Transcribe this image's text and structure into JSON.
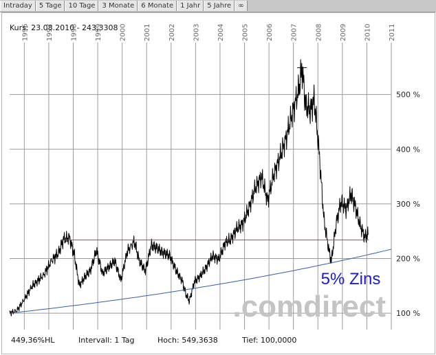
{
  "tabs": [
    "Intraday",
    "5 Tage",
    "10 Tage",
    "3 Monate",
    "6 Monate",
    "1 Jahr",
    "5 Jahre",
    "∞"
  ],
  "kurs_label": "Kurs: 23.08.2010 - 243,3308",
  "footer": {
    "perf": "449,36%HL",
    "interval": "Intervall: 1 Tag",
    "high": "Hoch: 549,3638",
    "low": "Tief: 100,0000"
  },
  "watermark": ".comdirect",
  "colors": {
    "line": "#000000",
    "resistance": "#d23232",
    "growth": "#2f5fb4",
    "annotation": "#1a1ad2",
    "grid": "#9a9a9a"
  },
  "chart_data": {
    "type": "line",
    "title": "",
    "xlabel": "",
    "ylabel": "",
    "x_ticks": [
      "1996",
      "1997",
      "1998",
      "1999",
      "2000",
      "2001",
      "2002",
      "2003",
      "2004",
      "2005",
      "2006",
      "2007",
      "2008",
      "2009",
      "2010",
      "2011"
    ],
    "y_ticks": [
      "100 %",
      "200 %",
      "300 %",
      "400 %",
      "500 %"
    ],
    "xlim": [
      1995.9,
      2011.5
    ],
    "ylim": [
      70,
      595
    ],
    "y_tick_values": [
      100,
      200,
      300,
      400,
      500
    ],
    "annotation": "5% Zins",
    "series": [
      {
        "values": [
          [
            1995.9,
            100
          ],
          [
            1996.2,
            105
          ],
          [
            1996.5,
            125
          ],
          [
            1996.8,
            148
          ],
          [
            1997.0,
            157
          ],
          [
            1997.3,
            170
          ],
          [
            1997.6,
            195
          ],
          [
            1997.9,
            210
          ],
          [
            1998.1,
            235
          ],
          [
            1998.35,
            238
          ],
          [
            1998.55,
            205
          ],
          [
            1998.75,
            150
          ],
          [
            1998.95,
            165
          ],
          [
            1999.2,
            178
          ],
          [
            1999.45,
            215
          ],
          [
            1999.7,
            172
          ],
          [
            1999.95,
            185
          ],
          [
            2000.2,
            195
          ],
          [
            2000.45,
            160
          ],
          [
            2000.7,
            212
          ],
          [
            2001.0,
            232
          ],
          [
            2001.2,
            195
          ],
          [
            2001.45,
            178
          ],
          [
            2001.7,
            225
          ],
          [
            2001.95,
            218
          ],
          [
            2002.2,
            210
          ],
          [
            2002.45,
            205
          ],
          [
            2002.7,
            178
          ],
          [
            2002.95,
            160
          ],
          [
            2003.1,
            135
          ],
          [
            2003.25,
            122
          ],
          [
            2003.45,
            158
          ],
          [
            2003.7,
            168
          ],
          [
            2003.95,
            185
          ],
          [
            2004.2,
            205
          ],
          [
            2004.45,
            198
          ],
          [
            2004.7,
            228
          ],
          [
            2004.95,
            236
          ],
          [
            2005.2,
            255
          ],
          [
            2005.45,
            265
          ],
          [
            2005.7,
            295
          ],
          [
            2005.95,
            330
          ],
          [
            2006.2,
            350
          ],
          [
            2006.45,
            305
          ],
          [
            2006.7,
            355
          ],
          [
            2006.95,
            385
          ],
          [
            2007.2,
            420
          ],
          [
            2007.45,
            465
          ],
          [
            2007.7,
            505
          ],
          [
            2007.85,
            549
          ],
          [
            2008.0,
            480
          ],
          [
            2008.2,
            470
          ],
          [
            2008.35,
            492
          ],
          [
            2008.55,
            395
          ],
          [
            2008.75,
            270
          ],
          [
            2008.95,
            215
          ],
          [
            2009.05,
            195
          ],
          [
            2009.25,
            265
          ],
          [
            2009.45,
            305
          ],
          [
            2009.65,
            290
          ],
          [
            2009.85,
            318
          ],
          [
            2010.0,
            300
          ],
          [
            2010.2,
            265
          ],
          [
            2010.4,
            240
          ],
          [
            2010.55,
            243
          ]
        ]
      },
      {
        "values": [
          [
            1998.0,
            234
          ],
          [
            2010.58,
            234
          ]
        ]
      },
      {
        "values": [
          [
            1995.9,
            100
          ],
          [
            2011.5,
            217
          ]
        ]
      }
    ]
  }
}
